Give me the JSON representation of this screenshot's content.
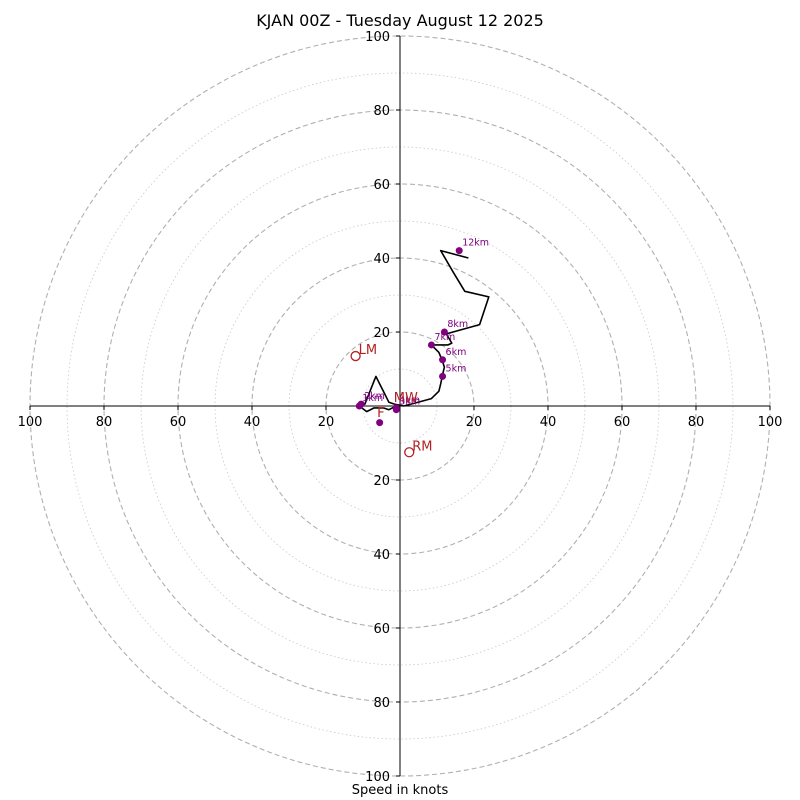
{
  "title": "KJAN 00Z - Tuesday August 12 2025",
  "xlabel": "Speed in knots",
  "colors": {
    "hodograph": "#000000",
    "height_points": "#800080",
    "motion_markers": "#b22222",
    "rings_major": "#b0b0b0",
    "rings_minor": "#c8c8c8"
  },
  "chart_data": {
    "type": "hodograph",
    "units": "knots",
    "axis_range": [
      -100,
      100
    ],
    "ring_step_major": 20,
    "ring_step_minor": 10,
    "x_tick_labels": [
      "100",
      "80",
      "60",
      "40",
      "20",
      "20",
      "40",
      "60",
      "80",
      "100"
    ],
    "y_tick_labels": [
      "100",
      "80",
      "60",
      "40",
      "20",
      "20",
      "40",
      "60",
      "80",
      "100"
    ],
    "trace": [
      [
        -1,
        0
      ],
      [
        -3,
        -1
      ],
      [
        -4.5,
        -0.5
      ],
      [
        -7,
        -0.5
      ],
      [
        -9,
        -1.5
      ],
      [
        -11,
        0
      ],
      [
        -9.5,
        0.5
      ],
      [
        -6.5,
        8
      ],
      [
        -4,
        3
      ],
      [
        -3,
        1
      ],
      [
        -1.5,
        0.5
      ],
      [
        1,
        0
      ],
      [
        3,
        0.5
      ],
      [
        8.5,
        2
      ],
      [
        10.5,
        4
      ],
      [
        11,
        6
      ],
      [
        11.5,
        8.5
      ],
      [
        12,
        10.5
      ],
      [
        11.5,
        12
      ],
      [
        10.5,
        14.5
      ],
      [
        8.5,
        16.5
      ],
      [
        13,
        16.5
      ],
      [
        14,
        17
      ],
      [
        12.5,
        19.5
      ],
      [
        21.5,
        22
      ],
      [
        24,
        29.5
      ],
      [
        17.5,
        31
      ],
      [
        14.5,
        36
      ],
      [
        11,
        42
      ],
      [
        18.5,
        40
      ]
    ],
    "height_points": [
      {
        "label": "1km",
        "u": -11,
        "v": 0
      },
      {
        "label": "2km",
        "u": -10.5,
        "v": 0.5
      },
      {
        "label": "3km",
        "u": -1,
        "v": -1
      },
      {
        "label": "4km",
        "u": -1,
        "v": -0.5
      },
      {
        "label": "",
        "u": -5.5,
        "v": -4.5
      },
      {
        "label": "5km",
        "u": 11.5,
        "v": 8
      },
      {
        "label": "6km",
        "u": 11.5,
        "v": 12.5
      },
      {
        "label": "7km",
        "u": 8.5,
        "v": 16.5
      },
      {
        "label": "8km",
        "u": 12,
        "v": 20
      },
      {
        "label": "12km",
        "u": 16,
        "v": 42
      }
    ],
    "motion_markers": [
      {
        "label": "LM",
        "u": -12,
        "v": 13.5
      },
      {
        "label": "RM",
        "u": 2.5,
        "v": -12.5
      },
      {
        "label": "MW",
        "u": -2.5,
        "v": 0.5
      },
      {
        "label": "F",
        "u": -7,
        "v": -3.5
      }
    ]
  }
}
